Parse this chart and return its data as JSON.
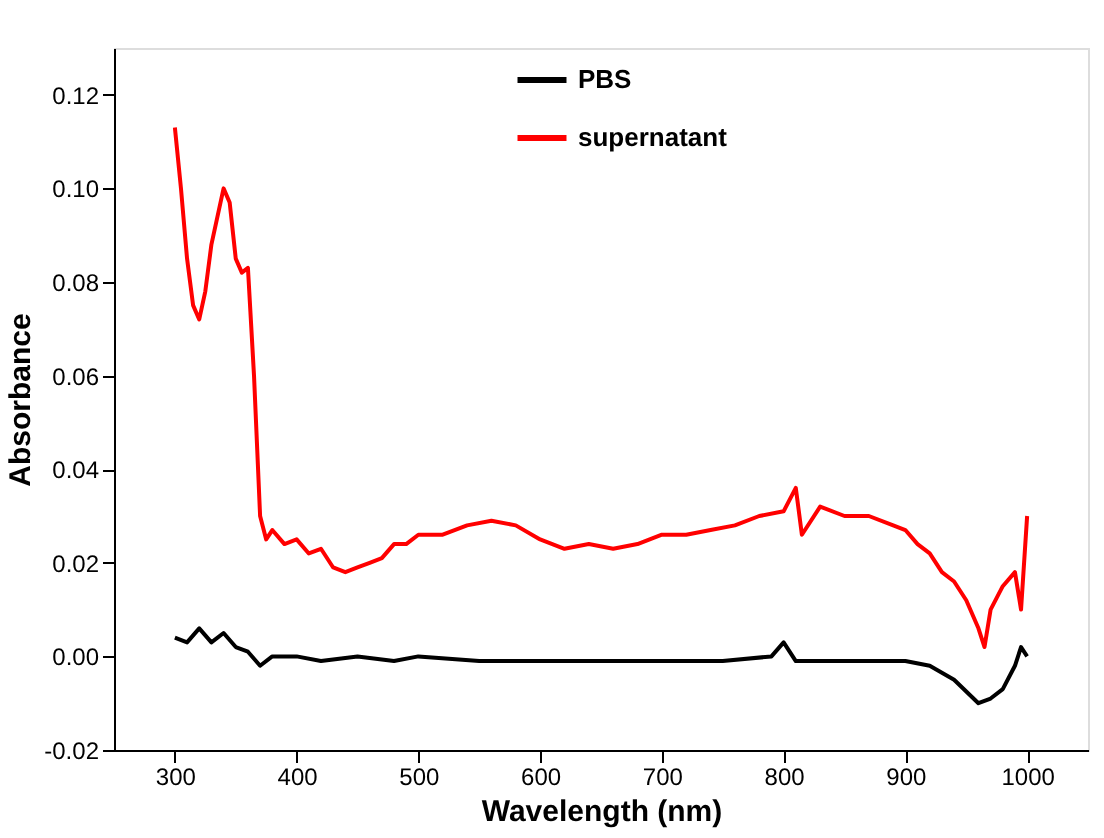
{
  "chart_data": {
    "type": "line",
    "xlabel": "Wavelength (nm)",
    "ylabel": "Absorbance",
    "xlim": [
      250,
      1050
    ],
    "ylim": [
      -0.02,
      0.13
    ],
    "xticks": [
      300,
      400,
      500,
      600,
      700,
      800,
      900,
      1000
    ],
    "yticks": [
      {
        "value": -0.02,
        "label": "-0.02"
      },
      {
        "value": 0,
        "label": "0.00"
      },
      {
        "value": 0.02,
        "label": "0.02"
      },
      {
        "value": 0.04,
        "label": "0.04"
      },
      {
        "value": 0.06,
        "label": "0.06"
      },
      {
        "value": 0.08,
        "label": "0.08"
      },
      {
        "value": 0.1,
        "label": "0.10"
      },
      {
        "value": 0.12,
        "label": "0.12"
      }
    ],
    "grid": false,
    "legend": "top",
    "marker": "none",
    "line_style": "solid",
    "series": [
      {
        "name": "PBS",
        "color": "#000000",
        "x": [
          300,
          310,
          320,
          330,
          340,
          350,
          360,
          370,
          380,
          400,
          420,
          450,
          480,
          500,
          550,
          600,
          650,
          700,
          750,
          790,
          800,
          810,
          850,
          900,
          920,
          940,
          960,
          970,
          980,
          990,
          995,
          1000
        ],
        "values": [
          0.004,
          0.003,
          0.006,
          0.003,
          0.005,
          0.002,
          0.001,
          -0.002,
          0.0,
          0.0,
          -0.001,
          0.0,
          -0.001,
          0.0,
          -0.001,
          -0.001,
          -0.001,
          -0.001,
          -0.001,
          0.0,
          0.003,
          -0.001,
          -0.001,
          -0.001,
          -0.002,
          -0.005,
          -0.01,
          -0.009,
          -0.007,
          -0.002,
          0.002,
          0.0
        ]
      },
      {
        "name": "supernatant",
        "color": "#ff0000",
        "x": [
          300,
          305,
          310,
          315,
          320,
          325,
          330,
          340,
          345,
          350,
          355,
          360,
          365,
          370,
          375,
          380,
          390,
          400,
          410,
          420,
          430,
          440,
          450,
          460,
          470,
          480,
          490,
          500,
          520,
          540,
          560,
          580,
          600,
          620,
          640,
          660,
          680,
          700,
          720,
          740,
          760,
          780,
          800,
          810,
          815,
          830,
          850,
          870,
          890,
          900,
          910,
          920,
          930,
          940,
          950,
          960,
          965,
          970,
          980,
          990,
          995,
          1000
        ],
        "values": [
          0.113,
          0.1,
          0.085,
          0.075,
          0.072,
          0.078,
          0.088,
          0.1,
          0.097,
          0.085,
          0.082,
          0.083,
          0.06,
          0.03,
          0.025,
          0.027,
          0.024,
          0.025,
          0.022,
          0.023,
          0.019,
          0.018,
          0.019,
          0.02,
          0.021,
          0.024,
          0.024,
          0.026,
          0.026,
          0.028,
          0.029,
          0.028,
          0.025,
          0.023,
          0.024,
          0.023,
          0.024,
          0.026,
          0.026,
          0.027,
          0.028,
          0.03,
          0.031,
          0.036,
          0.026,
          0.032,
          0.03,
          0.03,
          0.028,
          0.027,
          0.024,
          0.022,
          0.018,
          0.016,
          0.012,
          0.006,
          0.002,
          0.01,
          0.015,
          0.018,
          0.01,
          0.03
        ]
      }
    ]
  }
}
